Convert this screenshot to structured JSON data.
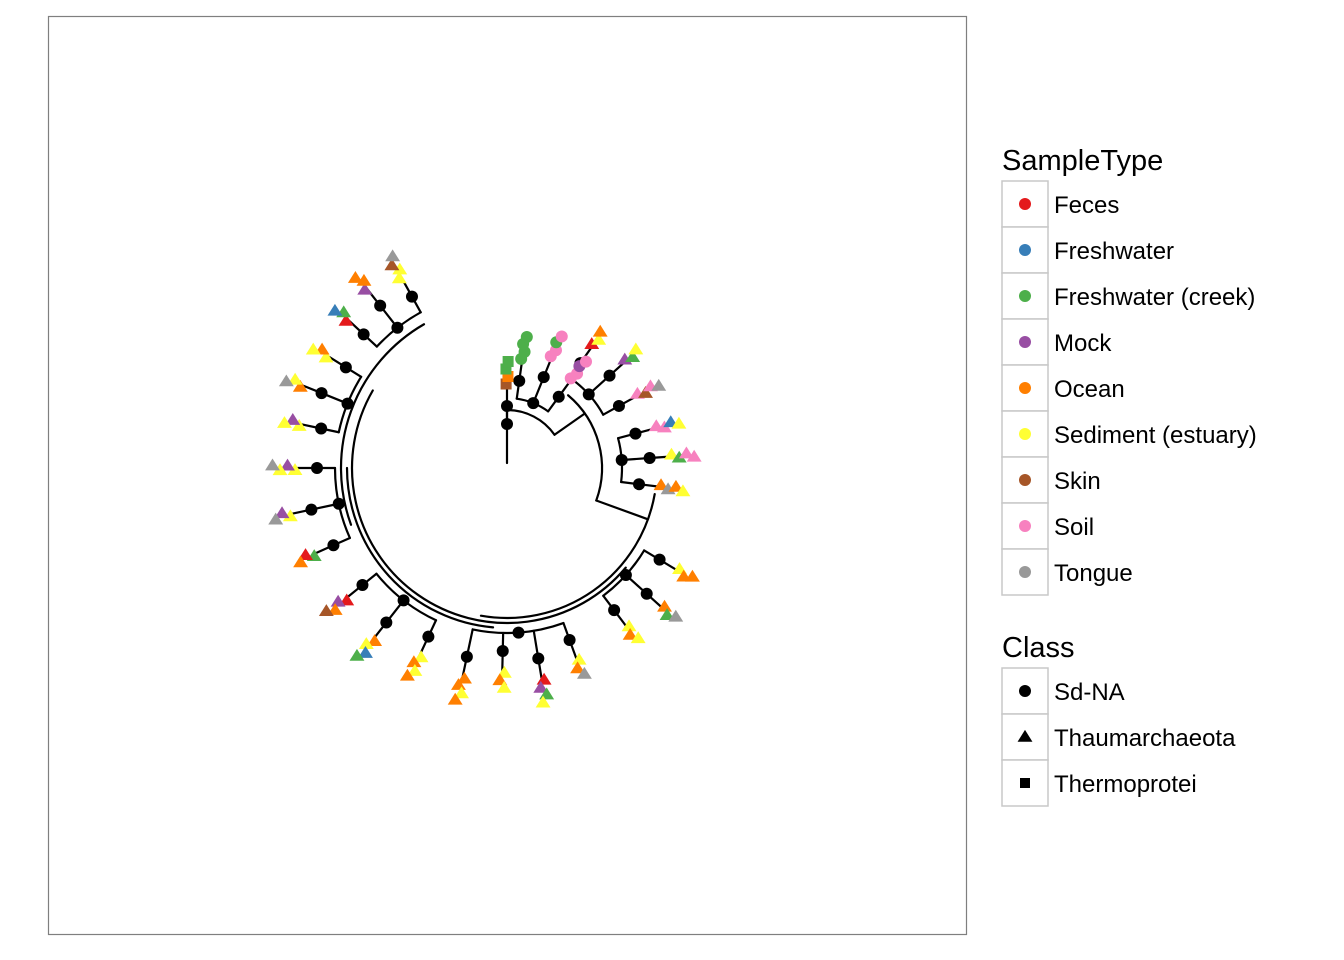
{
  "legend_sample_type": {
    "title": "SampleType",
    "items": [
      {
        "label": "Feces",
        "color": "#e41a1c"
      },
      {
        "label": "Freshwater",
        "color": "#377eb8"
      },
      {
        "label": "Freshwater (creek)",
        "color": "#4daf4a"
      },
      {
        "label": "Mock",
        "color": "#984ea3"
      },
      {
        "label": "Ocean",
        "color": "#ff7f00"
      },
      {
        "label": "Sediment (estuary)",
        "color": "#ffff33"
      },
      {
        "label": "Skin",
        "color": "#a65628"
      },
      {
        "label": "Soil",
        "color": "#f781bf"
      },
      {
        "label": "Tongue",
        "color": "#999999"
      }
    ]
  },
  "legend_class": {
    "title": "Class",
    "items": [
      {
        "label": "Sd-NA",
        "shape": "circle"
      },
      {
        "label": "Thaumarchaeota",
        "shape": "triangle"
      },
      {
        "label": "Thermoprotei",
        "shape": "square"
      }
    ]
  },
  "tree": {
    "layout": "circular",
    "node_color": "#000000",
    "clades": [
      {
        "class": "Thermoprotei",
        "samples": [
          "Skin",
          "Ocean",
          "Freshwater (creek)",
          "Freshwater (creek)"
        ]
      },
      {
        "class": "Sd-NA",
        "samples": [
          "Freshwater (creek)",
          "Freshwater (creek)",
          "Freshwater (creek)",
          "Freshwater (creek)",
          "Soil",
          "Soil",
          "Freshwater (creek)",
          "Soil",
          "Soil",
          "Soil",
          "Mock",
          "Soil"
        ]
      },
      {
        "class": "Thaumarchaeota",
        "samples": [
          "Feces",
          "Sediment (estuary)",
          "Ocean",
          "Mock",
          "Freshwater (creek)",
          "Sediment (estuary)",
          "Soil",
          "Skin",
          "Soil",
          "Tongue"
        ]
      },
      {
        "class": "Thaumarchaeota",
        "samples": [
          "Soil",
          "Soil",
          "Freshwater",
          "Sediment (estuary)",
          "Sediment (estuary)",
          "Freshwater (creek)",
          "Soil",
          "Soil",
          "Ocean",
          "Tongue",
          "Ocean",
          "Sediment (estuary)"
        ]
      },
      {
        "class": "Thaumarchaeota",
        "samples": [
          "Sediment (estuary)",
          "Ocean",
          "Ocean",
          "Ocean",
          "Freshwater (creek)",
          "Tongue",
          "Sediment (estuary)",
          "Ocean",
          "Sediment (estuary)"
        ]
      },
      {
        "class": "Thaumarchaeota",
        "samples": [
          "Sediment (estuary)",
          "Ocean",
          "Tongue",
          "Feces",
          "Mock",
          "Freshwater (creek)",
          "Sediment (estuary)",
          "Sediment (estuary)",
          "Ocean",
          "Sediment (estuary)",
          "Ocean",
          "Ocean",
          "Sediment (estuary)",
          "Ocean"
        ]
      },
      {
        "class": "Thaumarchaeota",
        "samples": [
          "Sediment (estuary)",
          "Ocean",
          "Sediment (estuary)",
          "Ocean",
          "Ocean",
          "Sediment (estuary)",
          "Freshwater",
          "Freshwater (creek)",
          "Feces",
          "Mock",
          "Ocean",
          "Skin"
        ]
      },
      {
        "class": "Thaumarchaeota",
        "samples": [
          "Freshwater (creek)",
          "Feces",
          "Ocean",
          "Sediment (estuary)",
          "Mock",
          "Tongue",
          "Sediment (estuary)",
          "Mock",
          "Sediment (estuary)",
          "Tongue"
        ]
      },
      {
        "class": "Thaumarchaeota",
        "samples": [
          "Sediment (estuary)",
          "Mock",
          "Sediment (estuary)",
          "Ocean",
          "Sediment (estuary)",
          "Tongue",
          "Sediment (estuary)",
          "Ocean",
          "Sediment (estuary)"
        ]
      },
      {
        "class": "Thaumarchaeota",
        "samples": [
          "Feces",
          "Freshwater (creek)",
          "Freshwater",
          "Mock",
          "Ocean",
          "Ocean",
          "Sediment (estuary)",
          "Sediment (estuary)",
          "Skin",
          "Tongue"
        ]
      }
    ]
  }
}
